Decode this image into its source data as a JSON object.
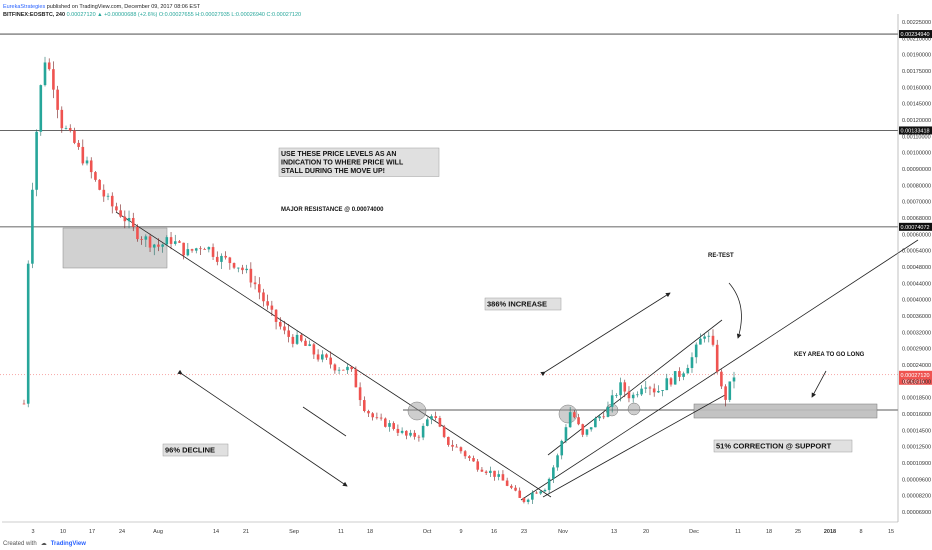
{
  "header": {
    "line1_author": "EurekaStrategies",
    "line1_rest": "published on TradingView.com, December 09, 2017 08:06 EST",
    "ticker": "BITFINEX:EOSBTC, 240",
    "ohlc": "0.00027120 ▲ +0.00000688 (+2.6%) O:0.00027655 H:0.00027935 L:0.00026940 C:0.00027120"
  },
  "footer": {
    "created_with": "Created with",
    "brand": "TradingView"
  },
  "colors": {
    "up": "#26a69a",
    "down": "#ef5350",
    "wick": "#7a1d1d",
    "level": "#333333",
    "price_line": "#ef5350",
    "box_fill": "#bdbdbd"
  },
  "chart_data": {
    "type": "line",
    "title": "",
    "ylim": [
      4.2e-05,
      0.00226
    ],
    "y_ticks": [
      "0.00225000",
      "0.00210000",
      "0.00190000",
      "0.00175000",
      "0.00160000",
      "0.00145000",
      "0.00120000",
      "0.00110000",
      "0.00100000",
      "0.00090000",
      "0.00080000",
      "0.00070000",
      "0.00068000",
      "0.00060000",
      "0.00054000",
      "0.00048000",
      "0.00044000",
      "0.00040000",
      "0.00036000",
      "0.00032000",
      "0.00029000",
      "0.00024000",
      "0.00021000",
      "0.00018500",
      "0.00016000",
      "0.00014500",
      "0.00012500",
      "0.00010900",
      "0.00009600",
      "0.00008200",
      "0.00006900"
    ],
    "x_ticks": [
      "3",
      "10",
      "17",
      "24",
      "Aug",
      "14",
      "21",
      "Sep",
      "11",
      "18",
      "Oct",
      "9",
      "16",
      "23",
      "Nov",
      "13",
      "20",
      "Dec",
      "11",
      "18",
      "25",
      "2018",
      "8",
      "15"
    ],
    "levels": [
      {
        "value": 0.0023494,
        "label": "0.00234940"
      },
      {
        "value": 0.00133418,
        "label": "0.00133418"
      },
      {
        "value": 0.00074072,
        "label": "0.00074072"
      }
    ],
    "support_level": 0.00021,
    "last_price": {
      "value": 0.0002712,
      "label": "0.00027120",
      "countdown": "02:53:15"
    },
    "price_path": [
      [
        0,
        0.00022
      ],
      [
        3,
        0.0013
      ],
      [
        5,
        0.00205
      ],
      [
        7,
        0.0018
      ],
      [
        9,
        0.0014
      ],
      [
        12,
        0.00125
      ],
      [
        15,
        0.0011
      ],
      [
        18,
        0.00095
      ],
      [
        21,
        0.00085
      ],
      [
        24,
        0.0008
      ],
      [
        27,
        0.00072
      ],
      [
        30,
        0.00068
      ],
      [
        33,
        0.00065
      ],
      [
        36,
        0.00068
      ],
      [
        40,
        0.00062
      ],
      [
        44,
        0.00066
      ],
      [
        48,
        0.0006
      ],
      [
        52,
        0.00058
      ],
      [
        56,
        0.00052
      ],
      [
        60,
        0.00042
      ],
      [
        64,
        0.00036
      ],
      [
        68,
        0.00034
      ],
      [
        72,
        0.00031
      ],
      [
        76,
        0.00029
      ],
      [
        80,
        0.00028
      ],
      [
        83,
        0.00022
      ],
      [
        86,
        0.00019
      ],
      [
        90,
        0.00018
      ],
      [
        94,
        0.00016
      ],
      [
        97,
        0.000165
      ],
      [
        100,
        0.000205
      ],
      [
        103,
        0.000155
      ],
      [
        107,
        0.00014
      ],
      [
        111,
        0.00012
      ],
      [
        115,
        0.00011
      ],
      [
        119,
        9.5e-05
      ],
      [
        122,
        8e-05
      ],
      [
        125,
        9e-05
      ],
      [
        128,
        9.5e-05
      ],
      [
        131,
        0.000135
      ],
      [
        134,
        0.00021
      ],
      [
        137,
        0.00016
      ],
      [
        140,
        0.00019
      ],
      [
        143,
        0.00021
      ],
      [
        146,
        0.00025
      ],
      [
        149,
        0.00023
      ],
      [
        152,
        0.00026
      ],
      [
        155,
        0.00024
      ],
      [
        158,
        0.00026
      ],
      [
        161,
        0.000275
      ],
      [
        164,
        0.00031
      ],
      [
        167,
        0.00037
      ],
      [
        169,
        0.00032
      ],
      [
        171,
        0.00024
      ],
      [
        172,
        0.00023
      ],
      [
        174,
        0.00027
      ]
    ],
    "annotations": {
      "levels_text": [
        "USE THESE PRICE LEVELS AS AN",
        "INDICATION TO WHERE PRICE WILL",
        "STALL DURING THE MOVE UP!"
      ],
      "major_resistance": "MAJOR RESISTANCE @ 0.00074000",
      "increase": "386% INCREASE",
      "decline": "96% DECLINE",
      "retest": "RE-TEST",
      "key_area": "KEY AREA TO GO LONG",
      "correction": "51% CORRECTION @ SUPPORT"
    }
  }
}
